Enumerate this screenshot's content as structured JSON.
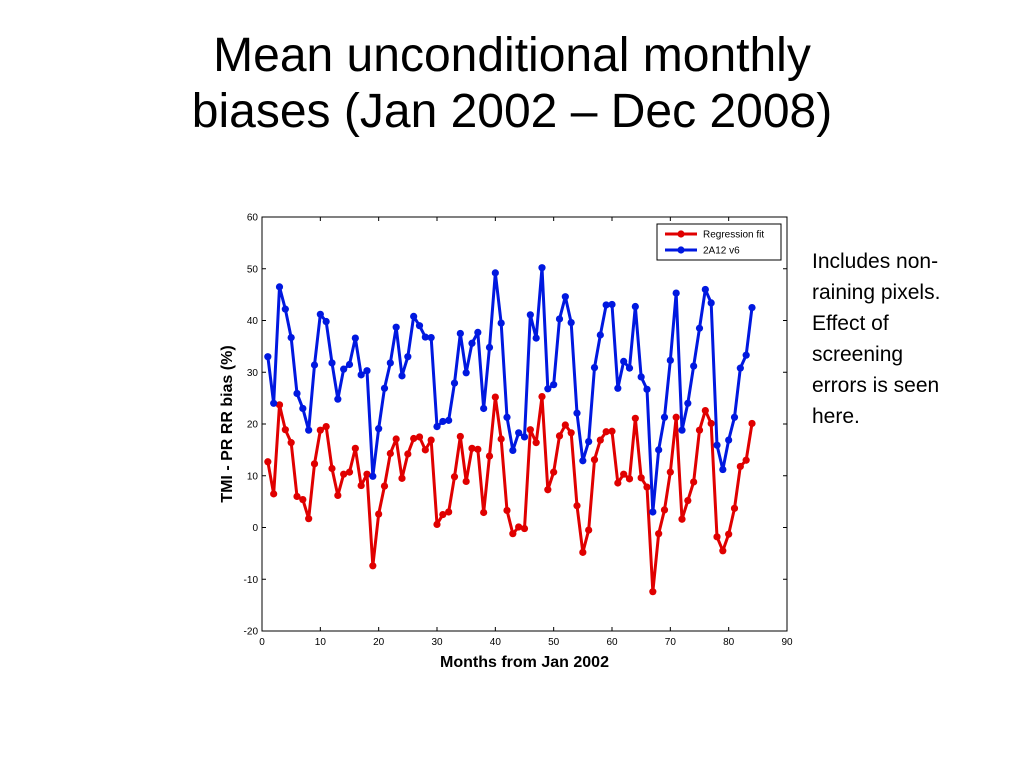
{
  "slide": {
    "title_line1": "Mean unconditional monthly",
    "title_line2": "biases (Jan 2002 – Dec 2008)",
    "note": "Includes non-\nraining pixels.\nEffect of\nscreening\nerrors is seen\nhere."
  },
  "chart_data": {
    "type": "line",
    "title": "",
    "xlabel": "Months from Jan 2002",
    "ylabel": "TMI - PR RR bias (%)",
    "xlim": [
      0,
      90
    ],
    "ylim": [
      -20,
      60
    ],
    "xticks": [
      0,
      10,
      20,
      30,
      40,
      50,
      60,
      70,
      80,
      90
    ],
    "yticks": [
      -20,
      -10,
      0,
      10,
      20,
      30,
      40,
      50,
      60
    ],
    "grid": false,
    "legend_position": "top-right",
    "x": [
      1,
      2,
      3,
      4,
      5,
      6,
      7,
      8,
      9,
      10,
      11,
      12,
      13,
      14,
      15,
      16,
      17,
      18,
      19,
      20,
      21,
      22,
      23,
      24,
      25,
      26,
      27,
      28,
      29,
      30,
      31,
      32,
      33,
      34,
      35,
      36,
      37,
      38,
      39,
      40,
      41,
      42,
      43,
      44,
      45,
      46,
      47,
      48,
      49,
      50,
      51,
      52,
      53,
      54,
      55,
      56,
      57,
      58,
      59,
      60,
      61,
      62,
      63,
      64,
      65,
      66,
      67,
      68,
      69,
      70,
      71,
      72,
      73,
      74,
      75,
      76,
      77,
      78,
      79,
      80,
      81,
      82,
      83,
      84
    ],
    "series": [
      {
        "name": "Regression fit",
        "color": "#e00000",
        "values": [
          12.7,
          6.5,
          23.7,
          18.9,
          16.4,
          6.0,
          5.4,
          1.7,
          12.3,
          18.8,
          19.5,
          11.4,
          6.2,
          10.3,
          10.7,
          15.3,
          8.1,
          10.3,
          -7.4,
          2.6,
          8.0,
          14.3,
          17.1,
          9.5,
          14.2,
          17.2,
          17.5,
          15.0,
          16.9,
          0.6,
          2.5,
          3.0,
          9.8,
          17.6,
          8.9,
          15.3,
          15.1,
          2.9,
          13.8,
          25.2,
          17.1,
          3.3,
          -1.2,
          0.1,
          -0.2,
          18.9,
          16.4,
          25.3,
          7.3,
          10.7,
          17.7,
          19.8,
          18.3,
          4.2,
          -4.8,
          -0.5,
          13.1,
          16.9,
          18.5,
          18.6,
          8.6,
          10.3,
          9.4,
          21.1,
          9.6,
          7.8,
          -12.4,
          -1.2,
          3.4,
          10.7,
          21.3,
          1.6,
          5.2,
          8.8,
          18.8,
          22.6,
          20.1,
          -1.8,
          -4.5,
          -1.3,
          3.7,
          11.8,
          13.0,
          20.1
        ]
      },
      {
        "name": "2A12 v6",
        "color": "#0018e0",
        "values": [
          33.0,
          24.0,
          46.5,
          42.2,
          36.7,
          25.9,
          23.0,
          18.8,
          31.4,
          41.2,
          39.8,
          31.8,
          24.8,
          30.6,
          31.5,
          36.6,
          29.5,
          30.3,
          9.9,
          19.1,
          26.9,
          31.8,
          38.7,
          29.3,
          33.0,
          40.8,
          39.0,
          36.8,
          36.7,
          19.5,
          20.5,
          20.7,
          27.9,
          37.5,
          29.9,
          35.6,
          37.7,
          23.0,
          34.8,
          49.2,
          39.5,
          21.3,
          14.9,
          18.3,
          17.5,
          41.1,
          36.6,
          50.2,
          26.8,
          27.6,
          40.3,
          44.6,
          39.6,
          22.1,
          12.9,
          16.6,
          30.9,
          37.2,
          43.0,
          43.1,
          26.9,
          32.1,
          30.8,
          42.7,
          29.1,
          26.7,
          3.0,
          15.0,
          21.3,
          32.3,
          45.3,
          18.8,
          24.0,
          31.2,
          38.5,
          46.0,
          43.4,
          15.9,
          11.2,
          16.9,
          21.3,
          30.8,
          33.3,
          42.5
        ]
      }
    ]
  }
}
